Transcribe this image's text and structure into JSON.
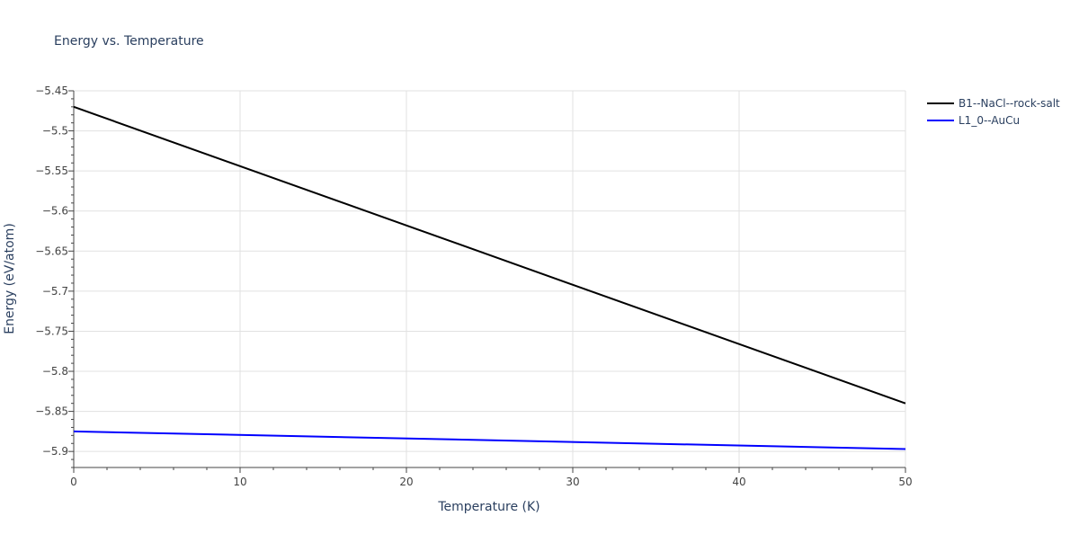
{
  "chart_data": {
    "type": "line",
    "title": "Energy vs. Temperature",
    "xlabel": "Temperature (K)",
    "ylabel": "Energy (eV/atom)",
    "xlim": [
      0,
      50
    ],
    "ylim": [
      -5.92,
      -5.45
    ],
    "xticks": [
      0,
      10,
      20,
      30,
      40,
      50
    ],
    "xtick_labels": [
      "0",
      "10",
      "20",
      "30",
      "40",
      "50"
    ],
    "yticks": [
      -5.45,
      -5.5,
      -5.55,
      -5.6,
      -5.65,
      -5.7,
      -5.75,
      -5.8,
      -5.85,
      -5.9
    ],
    "ytick_labels": [
      "−5.45",
      "−5.5",
      "−5.55",
      "−5.6",
      "−5.65",
      "−5.7",
      "−5.75",
      "−5.8",
      "−5.85",
      "−5.9"
    ],
    "grid": true,
    "legend_position": "top-right",
    "series": [
      {
        "name": "B1--NaCl--rock-salt",
        "color": "#000000",
        "x": [
          0,
          50
        ],
        "y": [
          -5.47,
          -5.84
        ]
      },
      {
        "name": "L1_0--AuCu",
        "color": "#0000ff",
        "x": [
          0,
          50
        ],
        "y": [
          -5.875,
          -5.897
        ]
      }
    ]
  }
}
